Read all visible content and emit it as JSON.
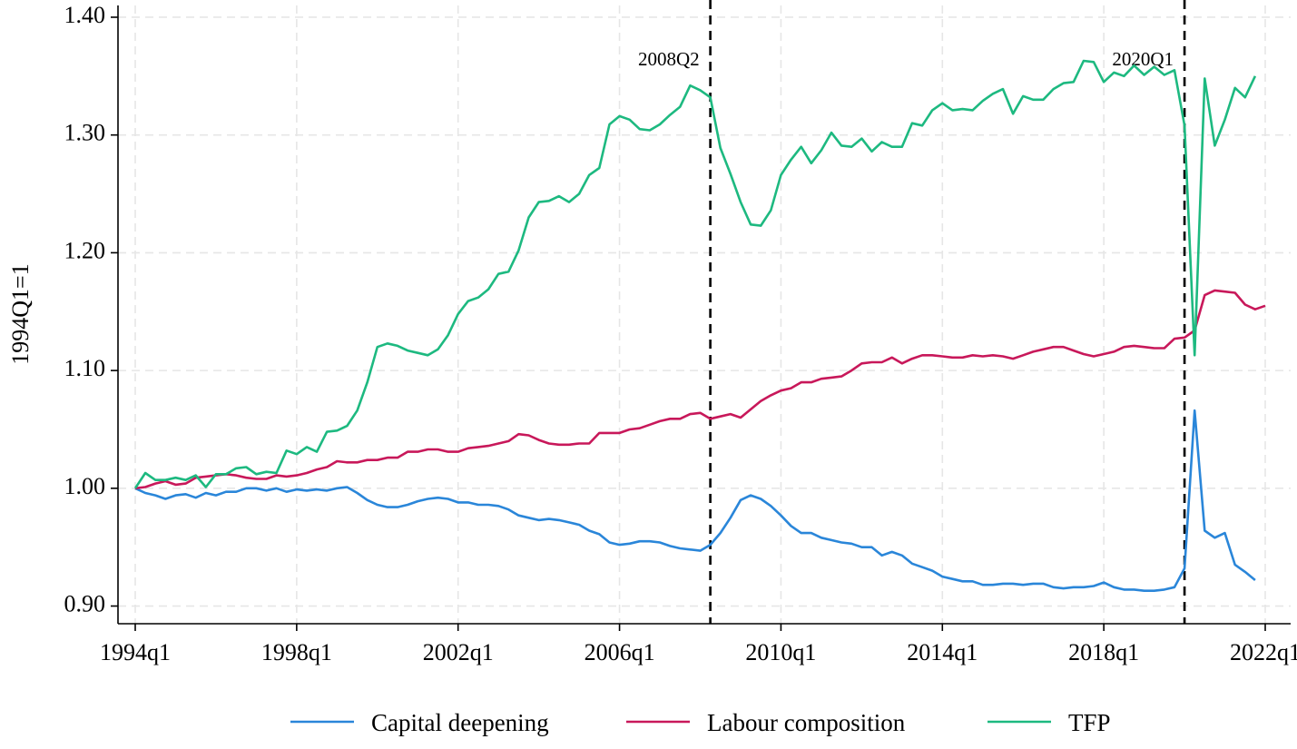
{
  "chart_data": {
    "type": "line",
    "title": "",
    "xlabel": "",
    "ylabel": "1994Q1=1",
    "x_start_quarter": "1994q1",
    "xlim": [
      1994.0,
      2022.0
    ],
    "ylim": [
      0.885,
      1.41
    ],
    "x_ticks": [
      {
        "value": 1994,
        "label": "1994q1"
      },
      {
        "value": 1998,
        "label": "1998q1"
      },
      {
        "value": 2002,
        "label": "2002q1"
      },
      {
        "value": 2006,
        "label": "2006q1"
      },
      {
        "value": 2010,
        "label": "2010q1"
      },
      {
        "value": 2014,
        "label": "2014q1"
      },
      {
        "value": 2018,
        "label": "2018q1"
      },
      {
        "value": 2022,
        "label": "2022q1"
      }
    ],
    "y_ticks": [
      {
        "value": 0.9,
        "label": "0.90"
      },
      {
        "value": 1.0,
        "label": "1.00"
      },
      {
        "value": 1.1,
        "label": "1.10"
      },
      {
        "value": 1.2,
        "label": "1.20"
      },
      {
        "value": 1.3,
        "label": "1.30"
      },
      {
        "value": 1.4,
        "label": "1.40"
      }
    ],
    "grid": true,
    "legend_position": "bottom",
    "annotations": [
      {
        "x": 2008.25,
        "label": "2008Q2"
      },
      {
        "x": 2020.0,
        "label": "2020Q1"
      }
    ],
    "series": [
      {
        "name": "Capital deepening",
        "color": "#2a86d9",
        "values": [
          1.0,
          0.996,
          0.994,
          0.991,
          0.994,
          0.995,
          0.992,
          0.996,
          0.994,
          0.997,
          0.997,
          1.0,
          1.0,
          0.998,
          1.0,
          0.997,
          0.999,
          0.998,
          0.999,
          0.998,
          1.0,
          1.001,
          0.996,
          0.99,
          0.986,
          0.984,
          0.984,
          0.986,
          0.989,
          0.991,
          0.992,
          0.991,
          0.988,
          0.988,
          0.986,
          0.986,
          0.985,
          0.982,
          0.977,
          0.975,
          0.973,
          0.974,
          0.973,
          0.971,
          0.969,
          0.964,
          0.961,
          0.954,
          0.952,
          0.953,
          0.955,
          0.955,
          0.954,
          0.951,
          0.949,
          0.948,
          0.947,
          0.952,
          0.962,
          0.975,
          0.99,
          0.994,
          0.991,
          0.985,
          0.977,
          0.968,
          0.962,
          0.962,
          0.958,
          0.956,
          0.954,
          0.953,
          0.95,
          0.95,
          0.943,
          0.946,
          0.943,
          0.936,
          0.933,
          0.93,
          0.925,
          0.923,
          0.921,
          0.921,
          0.918,
          0.918,
          0.919,
          0.919,
          0.918,
          0.919,
          0.919,
          0.916,
          0.915,
          0.916,
          0.916,
          0.917,
          0.92,
          0.916,
          0.914,
          0.914,
          0.913,
          0.913,
          0.914,
          0.916,
          0.932,
          1.066,
          0.964,
          0.958,
          0.962,
          0.935,
          0.929,
          0.922
        ]
      },
      {
        "name": "Labour composition",
        "color": "#c8185a",
        "values": [
          1.0,
          1.001,
          1.004,
          1.006,
          1.003,
          1.004,
          1.009,
          1.01,
          1.011,
          1.012,
          1.011,
          1.009,
          1.008,
          1.008,
          1.011,
          1.01,
          1.011,
          1.013,
          1.016,
          1.018,
          1.023,
          1.022,
          1.022,
          1.024,
          1.024,
          1.026,
          1.026,
          1.031,
          1.031,
          1.033,
          1.033,
          1.031,
          1.031,
          1.034,
          1.035,
          1.036,
          1.038,
          1.04,
          1.046,
          1.045,
          1.041,
          1.038,
          1.037,
          1.037,
          1.038,
          1.038,
          1.047,
          1.047,
          1.047,
          1.05,
          1.051,
          1.054,
          1.057,
          1.059,
          1.059,
          1.063,
          1.064,
          1.059,
          1.061,
          1.063,
          1.06,
          1.067,
          1.074,
          1.079,
          1.083,
          1.085,
          1.09,
          1.09,
          1.093,
          1.094,
          1.095,
          1.1,
          1.106,
          1.107,
          1.107,
          1.111,
          1.106,
          1.11,
          1.113,
          1.113,
          1.112,
          1.111,
          1.111,
          1.113,
          1.112,
          1.113,
          1.112,
          1.11,
          1.113,
          1.116,
          1.118,
          1.12,
          1.12,
          1.117,
          1.114,
          1.112,
          1.114,
          1.116,
          1.12,
          1.121,
          1.12,
          1.119,
          1.119,
          1.127,
          1.128,
          1.134,
          1.164,
          1.168,
          1.167,
          1.166,
          1.156,
          1.152,
          1.155
        ]
      },
      {
        "name": "TFP",
        "color": "#1db980",
        "values": [
          1.0,
          1.013,
          1.007,
          1.007,
          1.009,
          1.007,
          1.011,
          1.001,
          1.012,
          1.012,
          1.017,
          1.018,
          1.012,
          1.014,
          1.013,
          1.032,
          1.029,
          1.035,
          1.031,
          1.048,
          1.049,
          1.053,
          1.066,
          1.09,
          1.12,
          1.123,
          1.121,
          1.117,
          1.115,
          1.113,
          1.118,
          1.13,
          1.148,
          1.159,
          1.162,
          1.169,
          1.182,
          1.184,
          1.202,
          1.23,
          1.243,
          1.244,
          1.248,
          1.243,
          1.25,
          1.266,
          1.272,
          1.309,
          1.316,
          1.313,
          1.305,
          1.304,
          1.309,
          1.317,
          1.324,
          1.342,
          1.338,
          1.332,
          1.289,
          1.267,
          1.243,
          1.224,
          1.223,
          1.236,
          1.266,
          1.279,
          1.29,
          1.276,
          1.287,
          1.302,
          1.291,
          1.29,
          1.297,
          1.286,
          1.294,
          1.29,
          1.29,
          1.31,
          1.308,
          1.321,
          1.327,
          1.321,
          1.322,
          1.321,
          1.329,
          1.335,
          1.339,
          1.318,
          1.333,
          1.33,
          1.33,
          1.339,
          1.344,
          1.345,
          1.363,
          1.362,
          1.345,
          1.353,
          1.35,
          1.359,
          1.351,
          1.358,
          1.351,
          1.355,
          1.308,
          1.113,
          1.348,
          1.291,
          1.313,
          1.34,
          1.332,
          1.35
        ]
      }
    ]
  }
}
